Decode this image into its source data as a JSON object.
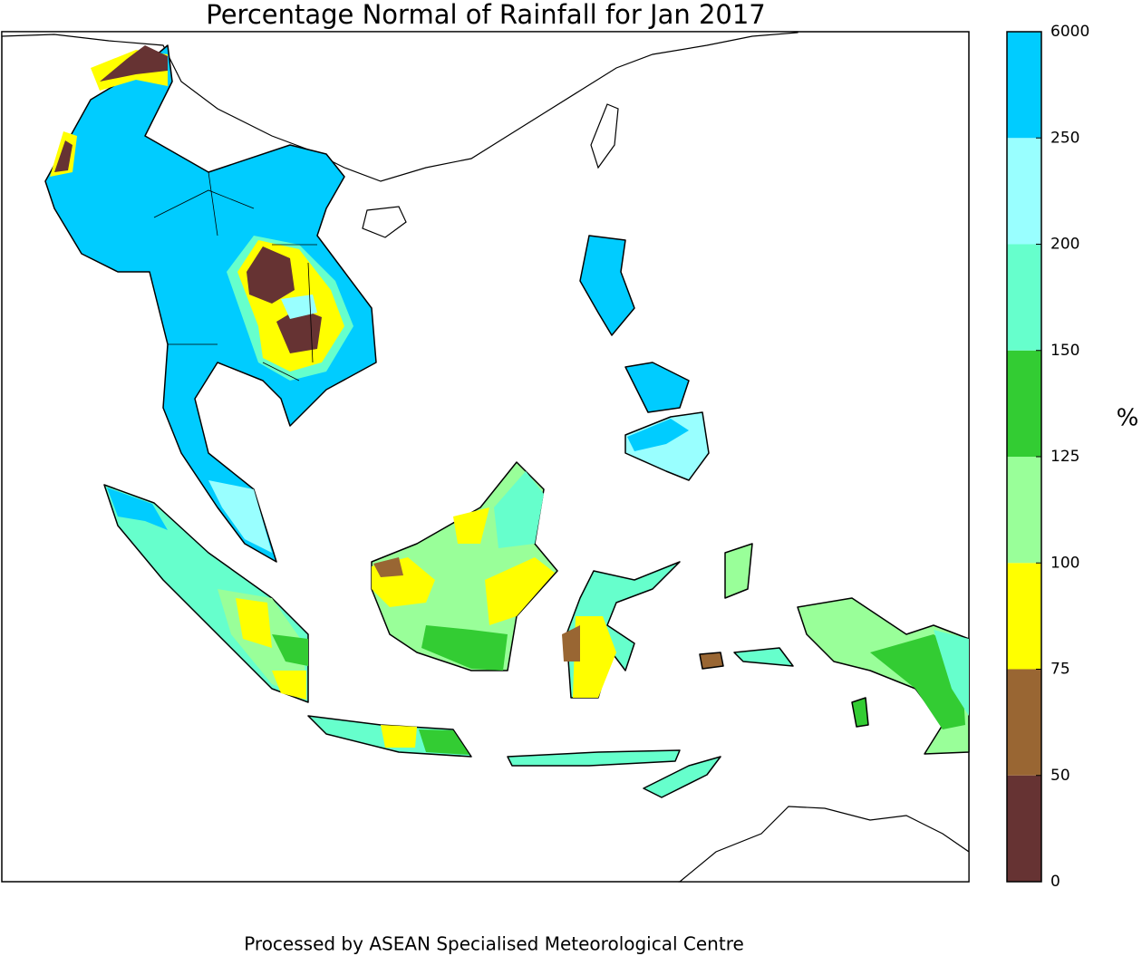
{
  "title": "Percentage Normal of Rainfall for Jan 2017",
  "footer": "Processed by ASEAN Specialised Meteorological Centre",
  "colorbar": {
    "unit": "%",
    "levels": [
      0,
      50,
      75,
      100,
      125,
      150,
      200,
      250,
      6000
    ],
    "colors": [
      "#663333",
      "#996633",
      "#ffff00",
      "#99ff99",
      "#33cc33",
      "#66ffcc",
      "#99ffff",
      "#00ccff"
    ]
  }
}
